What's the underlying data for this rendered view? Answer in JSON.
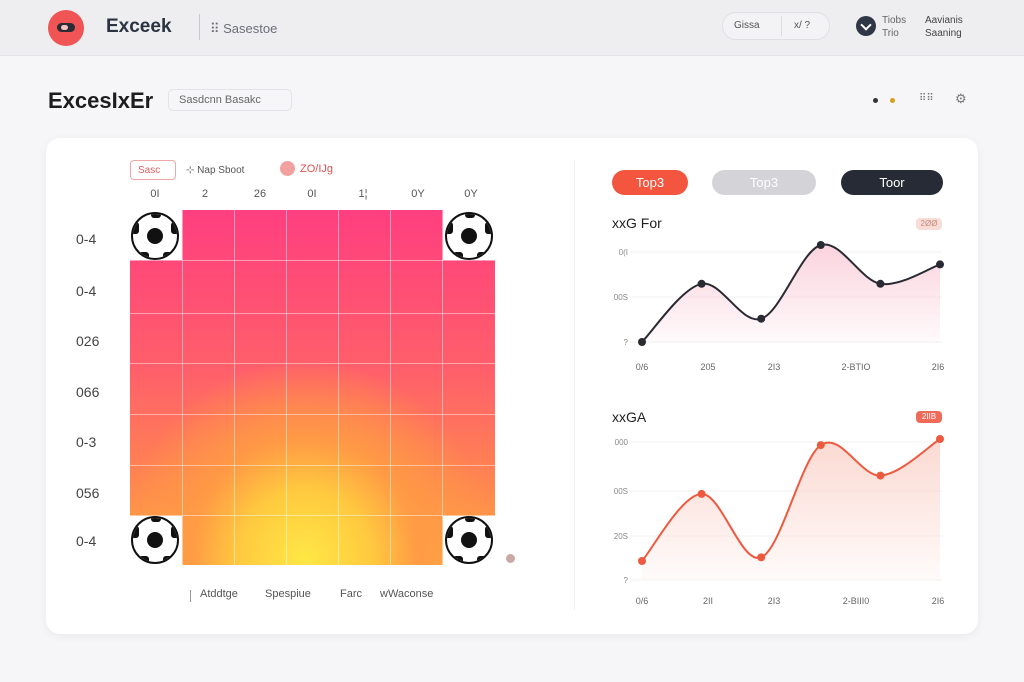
{
  "app": {
    "title": "Exceek",
    "crumb": "⠿ Sasestoe",
    "pill_a": "Gissa",
    "pill_b": "x/ ?",
    "user_name": "Tiobs\nTrio",
    "user_role": "Aavianis\nSaaning"
  },
  "page": {
    "title": "ExcesIxEr",
    "chip": "Sasdcnn  Basakc",
    "grid_icon": "⠿⠿",
    "gear_icon": "⚙"
  },
  "heatmap": {
    "legend_chip": "Sasc",
    "legend_label": "⊹ Nap Sboot",
    "legend_value": "ZO/IJg",
    "col_labels": [
      "0I",
      "2",
      "26",
      "0I",
      "1¦",
      "0Y",
      "0Y"
    ],
    "row_labels": [
      "0-4",
      "0-4",
      "026",
      "066",
      "0-3",
      "056",
      "0-4"
    ],
    "footer": [
      "Atddtge",
      "Spespiue",
      "Farc",
      "wWaconse"
    ],
    "colors": {
      "top": "#ff3f80",
      "mid": "#ff8a4d",
      "hot": "#ffe745"
    }
  },
  "buttons": [
    {
      "label": "Top3",
      "state": "active"
    },
    {
      "label": "Top3",
      "state": "disabled"
    },
    {
      "label": "Toor",
      "state": "dark"
    }
  ],
  "charts": [
    {
      "title": "xxG For",
      "badge": "2ØØ",
      "y_ticks": [
        "0(I",
        "00S",
        "?"
      ],
      "x_ticks": [
        "0/6",
        "205",
        "2I3",
        "2-BTIO",
        "2I6"
      ],
      "color": "#2a2a33",
      "fill": "#fbd0dc",
      "chart_data": {
        "type": "area",
        "x": [
          0,
          1,
          2,
          3,
          4,
          5
        ],
        "values": [
          0.0,
          0.6,
          0.24,
          1.0,
          0.6,
          0.8
        ],
        "ylim": [
          0,
          1
        ]
      }
    },
    {
      "title": "xxGA",
      "badge": "2IIB",
      "y_ticks": [
        "000",
        "00S",
        "20S",
        "?"
      ],
      "x_ticks": [
        "0/6",
        "2II",
        "2I3",
        "2-BIII0",
        "2I6"
      ],
      "color": "#ec5a3f",
      "fill": "#fbd7cf",
      "chart_data": {
        "type": "area",
        "x": [
          0,
          1,
          2,
          3,
          4,
          5
        ],
        "values": [
          0.0,
          0.55,
          0.03,
          0.95,
          0.7,
          1.0
        ],
        "ylim": [
          0,
          1
        ]
      }
    }
  ]
}
